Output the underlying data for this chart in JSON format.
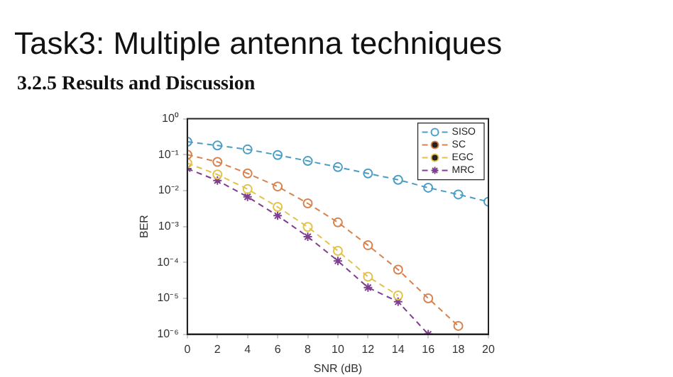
{
  "chart_data": {
    "type": "line",
    "title": "Task3: Multiple antenna techniques",
    "subtitle": "3.2.5 Results and Discussion",
    "xlabel": "SNR (dB)",
    "ylabel": "BER",
    "x": [
      0,
      2,
      4,
      6,
      8,
      10,
      12,
      14,
      16,
      18,
      20
    ],
    "series": [
      {
        "name": "SISO",
        "color": "#4c9dc4",
        "marker": "circle",
        "values": [
          0.23,
          0.18,
          0.14,
          0.098,
          0.067,
          0.045,
          0.03,
          0.02,
          0.012,
          0.0078,
          0.0049
        ]
      },
      {
        "name": "SC",
        "color": "#d9824e",
        "marker": "circle",
        "values": [
          0.1,
          0.063,
          0.03,
          0.013,
          0.0044,
          0.0013,
          0.0003,
          6.3e-05,
          1e-05,
          1.7e-06,
          null
        ]
      },
      {
        "name": "EGC",
        "color": "#e3c24a",
        "marker": "circle",
        "values": [
          0.058,
          0.028,
          0.011,
          0.0035,
          0.00097,
          0.00021,
          4e-05,
          1.2e-05,
          null,
          null,
          null
        ]
      },
      {
        "name": "MRC",
        "color": "#7e3f8f",
        "marker": "cross",
        "values": [
          0.041,
          0.019,
          0.0067,
          0.002,
          0.00052,
          0.00011,
          2e-05,
          8e-06,
          1e-06,
          null,
          null
        ]
      }
    ],
    "log": "y",
    "line_style": "dashed",
    "legend": "top right",
    "grid": false,
    "xlim": [
      0,
      20
    ],
    "xticks": [
      0,
      2,
      4,
      6,
      8,
      10,
      12,
      14,
      16,
      18,
      20
    ],
    "ylim": [
      1e-06,
      1
    ],
    "yticks": [
      {
        "value": 1e-06,
        "label": "10⁻⁶"
      },
      {
        "value": 1e-05,
        "label": "10⁻⁵"
      },
      {
        "value": 0.0001,
        "label": "10⁻⁴"
      },
      {
        "value": 0.001,
        "label": "10⁻³"
      },
      {
        "value": 0.01,
        "label": "10⁻²"
      },
      {
        "value": 0.1,
        "label": "10⁻¹"
      },
      {
        "value": 1,
        "label": "10⁰"
      }
    ]
  }
}
